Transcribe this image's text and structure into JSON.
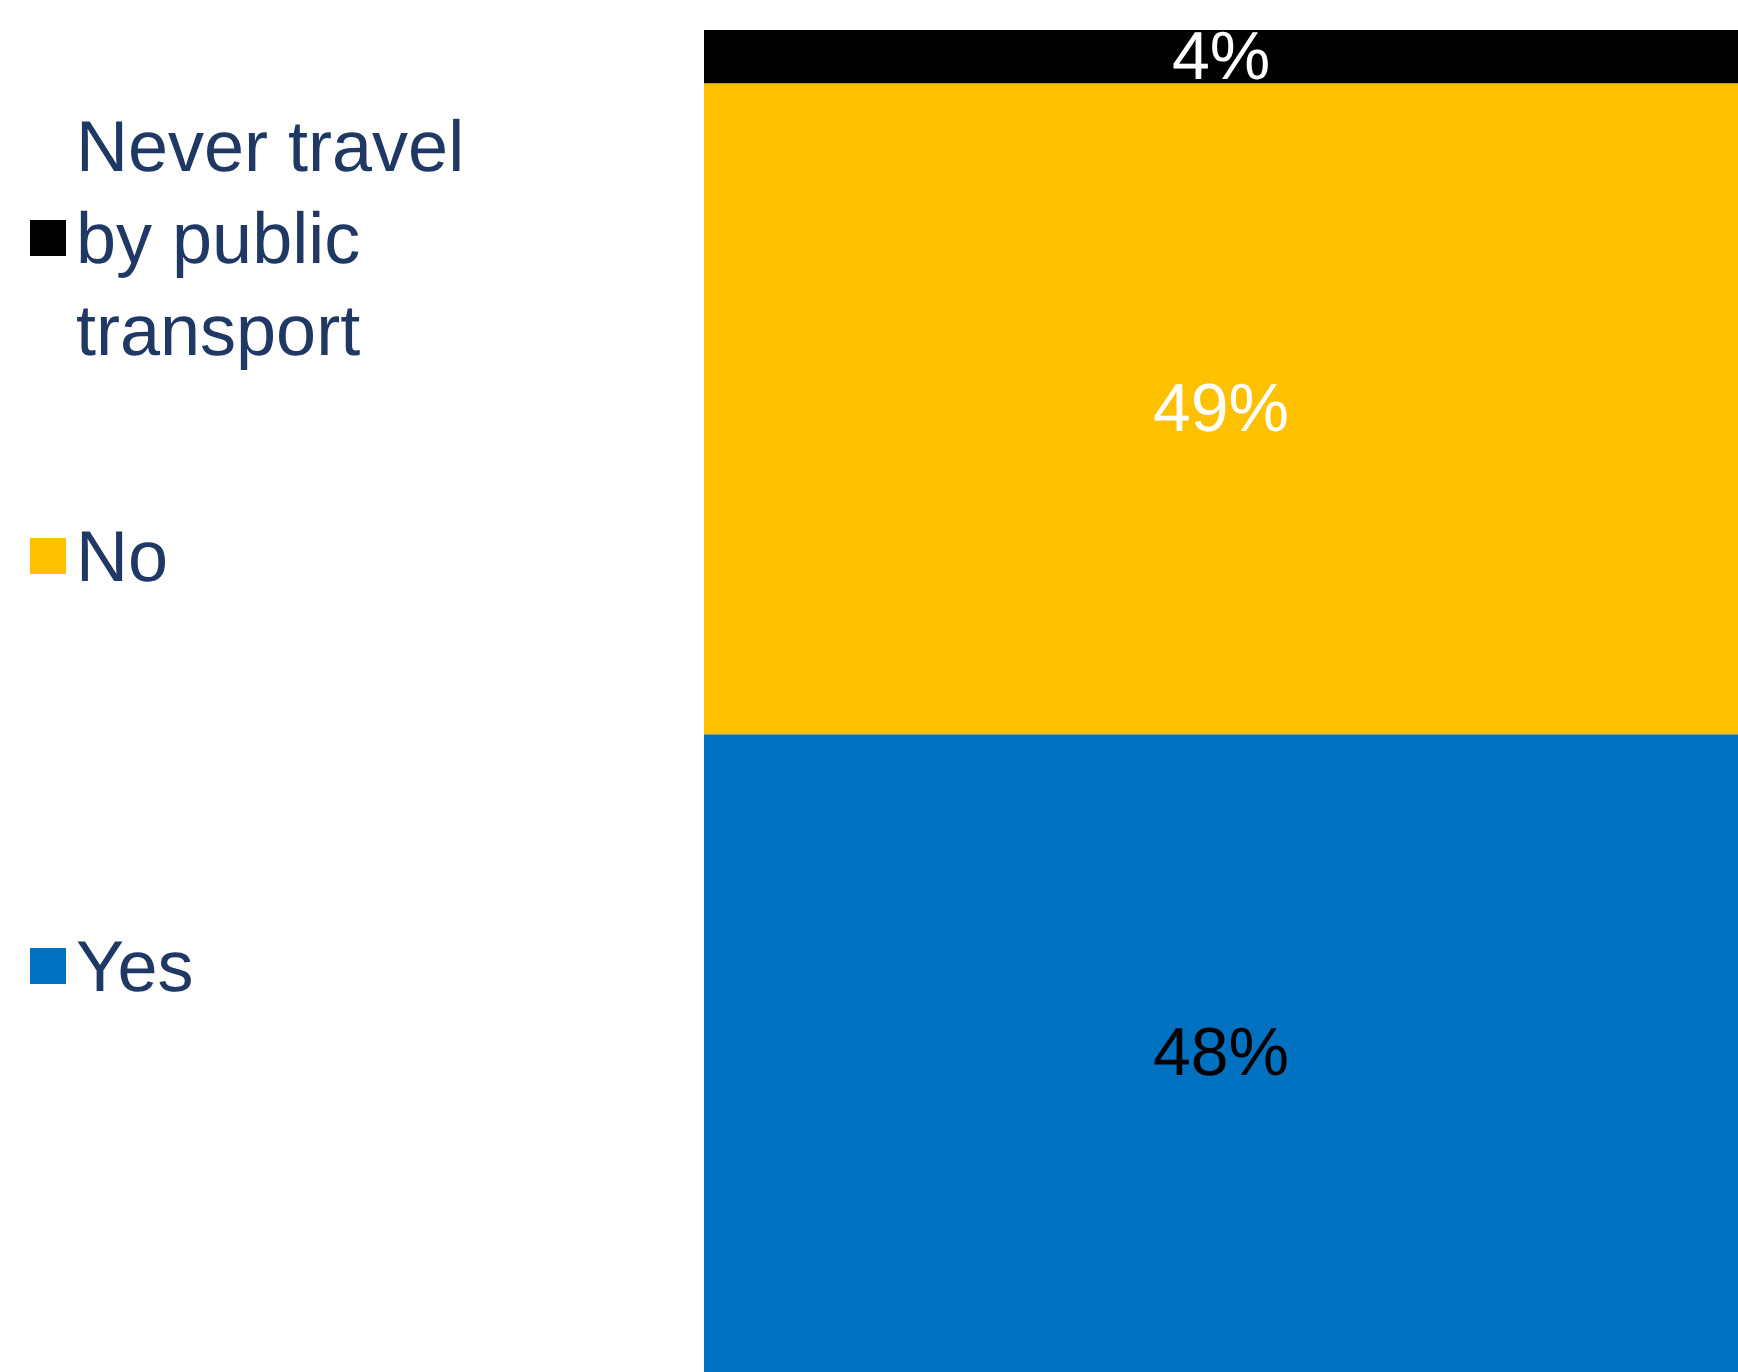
{
  "chart_data": {
    "type": "bar",
    "stacked": true,
    "categories": [
      null
    ],
    "legend": "left",
    "series": [
      {
        "name": "Yes",
        "color": "#0070c0",
        "values": [
          48
        ],
        "value_labels": [
          "48%"
        ]
      },
      {
        "name": "No",
        "color": "#ffc000",
        "values": [
          49
        ],
        "value_labels": [
          "49%"
        ]
      },
      {
        "name": "Never travel by public transport",
        "color": "#000000",
        "values": [
          4
        ],
        "value_labels": [
          "4%"
        ]
      }
    ]
  }
}
